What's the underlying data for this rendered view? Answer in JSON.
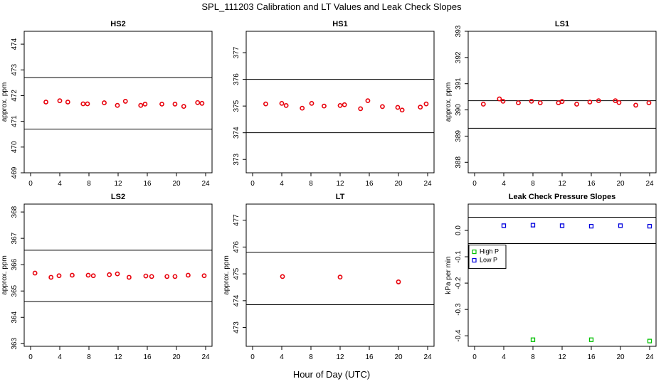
{
  "figure": {
    "title": "SPL_111203  Calibration and LT Values and Leak Check Slopes",
    "xlabel": "Hour of Day (UTC)"
  },
  "colors": {
    "red_points": "#e8000b",
    "high_p": "#00c000",
    "low_p": "#0000dd",
    "axis": "#000000"
  },
  "chart_data": [
    {
      "type": "scatter",
      "title": "HS2",
      "ylabel": "approx. ppm",
      "xlim": [
        0,
        24
      ],
      "ylim": [
        469,
        474.5
      ],
      "xticks": [
        0,
        4,
        8,
        12,
        16,
        20,
        24
      ],
      "yticks": [
        469,
        470,
        471,
        472,
        473,
        474
      ],
      "hlines": [
        472.7,
        470.7
      ],
      "series": [
        {
          "color": "#e8000b",
          "marker": "circle",
          "x": [
            2.1,
            4.0,
            5.1,
            7.2,
            7.8,
            10.1,
            11.9,
            13.0,
            15.1,
            15.7,
            18.0,
            19.8,
            21.0,
            22.9,
            23.5
          ],
          "y": [
            471.75,
            471.8,
            471.75,
            471.68,
            471.68,
            471.72,
            471.62,
            471.78,
            471.62,
            471.67,
            471.67,
            471.67,
            471.58,
            471.73,
            471.7
          ]
        }
      ]
    },
    {
      "type": "scatter",
      "title": "HS1",
      "ylabel": "",
      "xlim": [
        0,
        24
      ],
      "ylim": [
        372.5,
        377.8
      ],
      "xticks": [
        0,
        4,
        8,
        12,
        16,
        20,
        24
      ],
      "yticks": [
        373,
        374,
        375,
        376,
        377
      ],
      "hlines": [
        376.0,
        374.0
      ],
      "series": [
        {
          "color": "#e8000b",
          "marker": "circle",
          "x": [
            1.8,
            4.0,
            4.6,
            6.8,
            8.1,
            9.8,
            12.0,
            12.6,
            14.8,
            15.8,
            17.8,
            19.9,
            20.5,
            23.0,
            23.8
          ],
          "y": [
            375.08,
            375.1,
            375.02,
            374.92,
            375.1,
            375.0,
            375.02,
            375.05,
            374.9,
            375.2,
            374.98,
            374.95,
            374.85,
            374.96,
            375.08
          ]
        }
      ]
    },
    {
      "type": "scatter",
      "title": "LS1",
      "ylabel": "approx. ppm",
      "xlim": [
        0,
        24
      ],
      "ylim": [
        387.6,
        393.0
      ],
      "xticks": [
        0,
        4,
        8,
        12,
        16,
        20,
        24
      ],
      "yticks": [
        388,
        389,
        390,
        391,
        392,
        393
      ],
      "hlines": [
        390.35,
        389.3
      ],
      "series": [
        {
          "color": "#e8000b",
          "marker": "circle",
          "x": [
            1.2,
            3.4,
            3.9,
            6.0,
            7.8,
            9.0,
            11.5,
            12.0,
            14.0,
            15.8,
            17.0,
            19.3,
            19.8,
            22.1,
            23.9
          ],
          "y": [
            390.22,
            390.42,
            390.33,
            390.27,
            390.33,
            390.27,
            390.27,
            390.32,
            390.22,
            390.3,
            390.35,
            390.35,
            390.28,
            390.18,
            390.27
          ]
        }
      ]
    },
    {
      "type": "scatter",
      "title": "LS2",
      "ylabel": "approx. ppm",
      "xlim": [
        0,
        24
      ],
      "ylim": [
        362.9,
        368.3
      ],
      "xticks": [
        0,
        4,
        8,
        12,
        16,
        20,
        24
      ],
      "yticks": [
        363,
        364,
        365,
        366,
        367,
        368
      ],
      "hlines": [
        366.55,
        364.6
      ],
      "series": [
        {
          "color": "#e8000b",
          "marker": "circle",
          "x": [
            0.6,
            2.8,
            3.9,
            5.7,
            7.9,
            8.6,
            10.8,
            11.9,
            13.5,
            15.8,
            16.6,
            18.7,
            19.8,
            21.6,
            23.8
          ],
          "y": [
            365.68,
            365.52,
            365.58,
            365.6,
            365.6,
            365.58,
            365.62,
            365.65,
            365.52,
            365.57,
            365.55,
            365.55,
            365.55,
            365.6,
            365.58
          ]
        }
      ]
    },
    {
      "type": "scatter",
      "title": "LT",
      "ylabel": "approx. ppm",
      "xlim": [
        0,
        24
      ],
      "ylim": [
        472.3,
        477.6
      ],
      "xticks": [
        0,
        4,
        8,
        12,
        16,
        20,
        24
      ],
      "yticks": [
        473,
        474,
        475,
        476,
        477
      ],
      "hlines": [
        475.8,
        473.85
      ],
      "series": [
        {
          "color": "#e8000b",
          "marker": "circle",
          "x": [
            4.1,
            12.0,
            20.0
          ],
          "y": [
            474.9,
            474.88,
            474.7
          ]
        }
      ]
    },
    {
      "type": "scatter",
      "title": "Leak Check Pressure Slopes",
      "ylabel": "kPa per min",
      "xlim": [
        0,
        24
      ],
      "ylim": [
        -0.44,
        0.1
      ],
      "xticks": [
        0,
        4,
        8,
        12,
        16,
        20,
        24
      ],
      "yticks": [
        -0.4,
        -0.3,
        -0.2,
        -0.1,
        0.0
      ],
      "ytick_labels": [
        "-0.4",
        "-0.3",
        "-0.2",
        "-0.1",
        "0.0"
      ],
      "hlines": [
        0.05,
        -0.05
      ],
      "legend": {
        "placement": "left",
        "entries": [
          "High P",
          "Low P"
        ]
      },
      "series": [
        {
          "name": "High P",
          "color": "#00c000",
          "marker": "square",
          "x": [
            8.0,
            16.0,
            24.0
          ],
          "y": [
            -0.415,
            -0.415,
            -0.42
          ]
        },
        {
          "name": "Low P",
          "color": "#0000dd",
          "marker": "square",
          "x": [
            4.0,
            8.0,
            12.0,
            16.0,
            20.0,
            24.0
          ],
          "y": [
            0.018,
            0.02,
            0.018,
            0.016,
            0.018,
            0.016
          ]
        }
      ]
    }
  ]
}
